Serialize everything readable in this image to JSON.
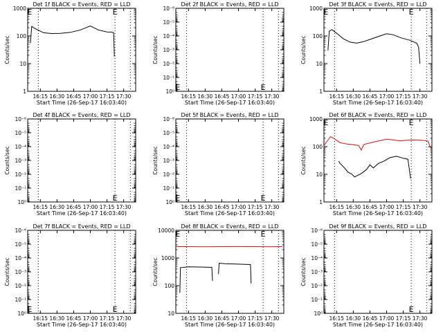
{
  "chart_data": [
    {
      "id": "det1",
      "title": "Det 1f BLACK = Events, RED = LLD",
      "type": "line",
      "yscale": "log",
      "ylim": [
        1,
        1000
      ],
      "ylabel": "Counts/sec",
      "xlabel": "Start Time (26-Sep-17 16:03:40)",
      "x_ticks": [
        "16:15",
        "16:30",
        "16:45",
        "17:00",
        "17:15",
        "17:30"
      ],
      "y_ticks": [
        "1",
        "10",
        "100",
        "1000"
      ],
      "xlim": [
        16.06,
        17.68
      ],
      "dotted_x": [
        16.22,
        17.37,
        17.6
      ],
      "markers": [
        {
          "label": "E",
          "x": 16.09,
          "y": 1000
        },
        {
          "label": "E",
          "x": 17.37,
          "y": 1000
        }
      ],
      "series": [
        {
          "color": "#000000",
          "x": [
            16.1,
            16.12,
            16.18,
            16.3,
            16.42,
            16.55,
            16.7,
            16.85,
            17.0,
            17.12,
            17.25,
            17.32,
            17.35,
            17.36
          ],
          "y": [
            55,
            220,
            180,
            130,
            122,
            124,
            135,
            165,
            230,
            165,
            140,
            138,
            130,
            18
          ]
        }
      ]
    },
    {
      "id": "det2",
      "title": "Det 2f BLACK = Events, RED = LLD",
      "type": "line",
      "yscale": "log",
      "ylim": [
        1,
        1e-06
      ],
      "ylabel": "Counts/sec",
      "xlabel": "Start Time (26-Sep-17 16:03:40)",
      "x_ticks": [
        "16:15",
        "16:30",
        "16:45",
        "17:00",
        "17:15",
        "17:30"
      ],
      "y_ticks": [
        "10⁰",
        "10⁻¹",
        "10⁻²",
        "10⁻³",
        "10⁻⁴",
        "10⁻⁵",
        "10⁻⁶"
      ],
      "xlim": [
        16.06,
        17.68
      ],
      "dotted_x": [
        16.22,
        17.37,
        17.6
      ],
      "markers": [
        {
          "label": "E",
          "x": 16.09,
          "y": 0.5
        },
        {
          "label": "E",
          "x": 17.37,
          "y": 0.5
        }
      ],
      "series": []
    },
    {
      "id": "det3",
      "title": "Det 3f BLACK = Events, RED = LLD",
      "type": "line",
      "yscale": "log",
      "ylim": [
        1,
        1000
      ],
      "ylabel": "Counts/sec",
      "xlabel": "Start Time (26-Sep-17 16:03:40)",
      "x_ticks": [
        "16:15",
        "16:30",
        "16:45",
        "17:00",
        "17:15",
        "17:30"
      ],
      "y_ticks": [
        "1",
        "10",
        "100",
        "1000"
      ],
      "xlim": [
        16.06,
        17.68
      ],
      "dotted_x": [
        16.22,
        17.37,
        17.6
      ],
      "markers": [
        {
          "label": "E",
          "x": 16.09,
          "y": 1000
        },
        {
          "label": "E",
          "x": 17.37,
          "y": 1000
        }
      ],
      "series": [
        {
          "color": "#000000",
          "x": [
            16.12,
            16.14,
            16.18,
            16.26,
            16.35,
            16.45,
            16.55,
            16.65,
            16.75,
            16.9,
            17.0,
            17.1,
            17.22,
            17.35,
            17.45,
            17.48,
            17.5
          ],
          "y": [
            30,
            150,
            170,
            120,
            80,
            60,
            55,
            62,
            75,
            100,
            120,
            110,
            85,
            70,
            55,
            40,
            10
          ]
        }
      ]
    },
    {
      "id": "det4",
      "title": "Det 4f BLACK = Events, RED = LLD",
      "type": "line",
      "yscale": "log",
      "ylim": [
        1,
        1e-06
      ],
      "ylabel": "Counts/sec",
      "xlabel": "Start Time (26-Sep-17 16:03:40)",
      "x_ticks": [
        "16:15",
        "16:30",
        "16:45",
        "17:00",
        "17:15",
        "17:30"
      ],
      "y_ticks": [
        "10⁰",
        "10⁻¹",
        "10⁻²",
        "10⁻³",
        "10⁻⁴",
        "10⁻⁵",
        "10⁻⁶"
      ],
      "xlim": [
        16.06,
        17.68
      ],
      "dotted_x": [
        16.22,
        17.37,
        17.6
      ],
      "markers": [
        {
          "label": "E",
          "x": 17.37,
          "y": 0.5
        }
      ],
      "series": []
    },
    {
      "id": "det5",
      "title": "Det 5f BLACK = Events, RED = LLD",
      "type": "line",
      "yscale": "log",
      "ylim": [
        1,
        1e-06
      ],
      "ylabel": "Counts/sec",
      "xlabel": "Start Time (26-Sep-17 16:03:40)",
      "x_ticks": [
        "16:15",
        "16:30",
        "16:45",
        "17:00",
        "17:15",
        "17:30"
      ],
      "y_ticks": [
        "10⁰",
        "10⁻¹",
        "10⁻²",
        "10⁻³",
        "10⁻⁴",
        "10⁻⁵",
        "10⁻⁶"
      ],
      "xlim": [
        16.06,
        17.68
      ],
      "dotted_x": [
        16.22,
        17.37,
        17.6
      ],
      "markers": [
        {
          "label": "E",
          "x": 16.09,
          "y": 0.5
        },
        {
          "label": "E",
          "x": 17.37,
          "y": 0.5
        }
      ],
      "series": []
    },
    {
      "id": "det6",
      "title": "Det 6f BLACK = Events, RED = LLD",
      "type": "line",
      "yscale": "log",
      "ylim": [
        1,
        1000
      ],
      "ylabel": "Counts/sec",
      "xlabel": "Start Time (26-Sep-17 16:03:40)",
      "x_ticks": [
        "16:15",
        "16:30",
        "16:45",
        "17:00",
        "17:15",
        "17:30"
      ],
      "y_ticks": [
        "1",
        "10",
        "100",
        "1000"
      ],
      "xlim": [
        16.06,
        17.68
      ],
      "dotted_x": [
        16.22,
        17.37,
        17.6
      ],
      "markers": [
        {
          "label": "E",
          "x": 16.09,
          "y": 1000
        },
        {
          "label": "E",
          "x": 17.37,
          "y": 1000
        }
      ],
      "series": [
        {
          "color": "#d01010",
          "x": [
            16.06,
            16.1,
            16.16,
            16.22,
            16.3,
            16.4,
            16.5,
            16.58,
            16.62,
            16.66,
            16.72,
            16.8,
            16.9,
            17.0,
            17.1,
            17.2,
            17.3,
            17.4,
            17.52,
            17.62,
            17.66
          ],
          "y": [
            110,
            150,
            230,
            190,
            140,
            125,
            118,
            110,
            75,
            120,
            130,
            145,
            165,
            185,
            175,
            160,
            170,
            175,
            170,
            160,
            90
          ]
        },
        {
          "color": "#000000",
          "x": [
            16.28,
            16.3,
            16.36,
            16.42,
            16.48,
            16.52,
            16.56,
            16.6,
            16.65,
            16.7,
            16.75,
            16.8,
            16.88,
            16.96,
            17.05,
            17.15,
            17.25,
            17.32,
            17.36
          ],
          "y": [
            30,
            25,
            18,
            12,
            10,
            8,
            9,
            10,
            12,
            15,
            22,
            17,
            25,
            30,
            40,
            45,
            38,
            35,
            7
          ]
        }
      ]
    },
    {
      "id": "det7",
      "title": "Det 7f BLACK = Events, RED = LLD",
      "type": "line",
      "yscale": "log",
      "ylim": [
        1,
        1e-06
      ],
      "ylabel": "Counts/sec",
      "xlabel": "Start Time (26-Sep-17 16:03:40)",
      "x_ticks": [
        "16:15",
        "16:30",
        "16:45",
        "17:00",
        "17:15",
        "17:30"
      ],
      "y_ticks": [
        "10⁰",
        "10⁻¹",
        "10⁻²",
        "10⁻³",
        "10⁻⁴",
        "10⁻⁵",
        "10⁻⁶"
      ],
      "xlim": [
        16.06,
        17.68
      ],
      "dotted_x": [
        16.22,
        17.37,
        17.6
      ],
      "markers": [
        {
          "label": "E",
          "x": 16.09,
          "y": 0.5
        },
        {
          "label": "E",
          "x": 17.37,
          "y": 0.5
        }
      ],
      "series": []
    },
    {
      "id": "det8",
      "title": "Det 8f BLACK = Events, RED = LLD",
      "type": "line",
      "yscale": "log",
      "ylim": [
        10,
        10000
      ],
      "ylabel": "Counts/sec",
      "xlabel": "Start Time (26-Sep-17 16:03:40)",
      "x_ticks": [
        "16:15",
        "16:30",
        "16:45",
        "17:00",
        "17:15",
        "17:30"
      ],
      "y_ticks": [
        "10",
        "100",
        "1000",
        "10000"
      ],
      "xlim": [
        16.06,
        17.68
      ],
      "dotted_x": [
        16.22,
        17.37,
        17.6
      ],
      "markers": [
        {
          "label": "E",
          "x": 16.09,
          "y": 10000
        },
        {
          "label": "E",
          "x": 17.37,
          "y": 10000
        }
      ],
      "series": [
        {
          "color": "#d01010",
          "x": [
            16.06,
            16.5,
            17.0,
            17.5,
            17.66
          ],
          "y": [
            2600,
            2550,
            2600,
            2550,
            2600
          ]
        },
        {
          "color": "#000000",
          "x": [
            16.12,
            16.13,
            16.25,
            16.45,
            16.6,
            16.61
          ],
          "y": [
            55,
            450,
            480,
            470,
            460,
            150
          ]
        },
        {
          "color": "#000000",
          "x": [
            16.7,
            16.71,
            16.8,
            17.0,
            17.18,
            17.19
          ],
          "y": [
            260,
            650,
            620,
            600,
            580,
            120
          ]
        }
      ]
    },
    {
      "id": "det9",
      "title": "Det 9f BLACK = Events, RED = LLD",
      "type": "line",
      "yscale": "log",
      "ylim": [
        1,
        1e-06
      ],
      "ylabel": "Counts/sec",
      "xlabel": "Start Time (26-Sep-17 16:03:40)",
      "x_ticks": [
        "16:15",
        "16:30",
        "16:45",
        "17:00",
        "17:15",
        "17:30"
      ],
      "y_ticks": [
        "10⁰",
        "10⁻¹",
        "10⁻²",
        "10⁻³",
        "10⁻⁴",
        "10⁻⁵",
        "10⁻⁶"
      ],
      "xlim": [
        16.06,
        17.68
      ],
      "dotted_x": [
        16.22,
        17.37,
        17.6
      ],
      "markers": [
        {
          "label": "E",
          "x": 17.37,
          "y": 0.5
        }
      ],
      "series": []
    }
  ]
}
